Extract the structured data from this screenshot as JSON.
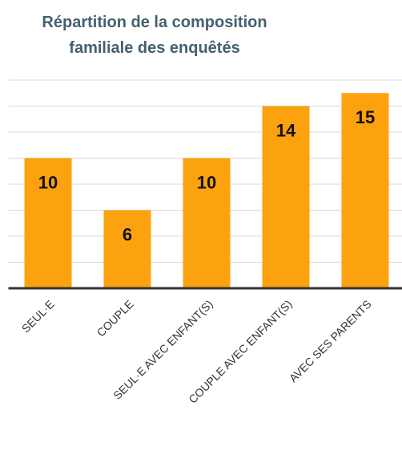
{
  "chart_data": {
    "type": "bar",
    "title": "Répartition de la composition familiale des enquêtés",
    "categories": [
      "SEUL·E",
      "COUPLE",
      "SEUL·E AVEC ENFANT(S)",
      "COUPLE AVEC ENFANT(S)",
      "AVEC SES PARENTS"
    ],
    "values": [
      10,
      6,
      10,
      14,
      15
    ],
    "color": "#fda20f",
    "ylim": [
      0,
      16
    ],
    "yticks": [
      0,
      2,
      4,
      6,
      8,
      10,
      12,
      14,
      16
    ],
    "grid": true
  }
}
